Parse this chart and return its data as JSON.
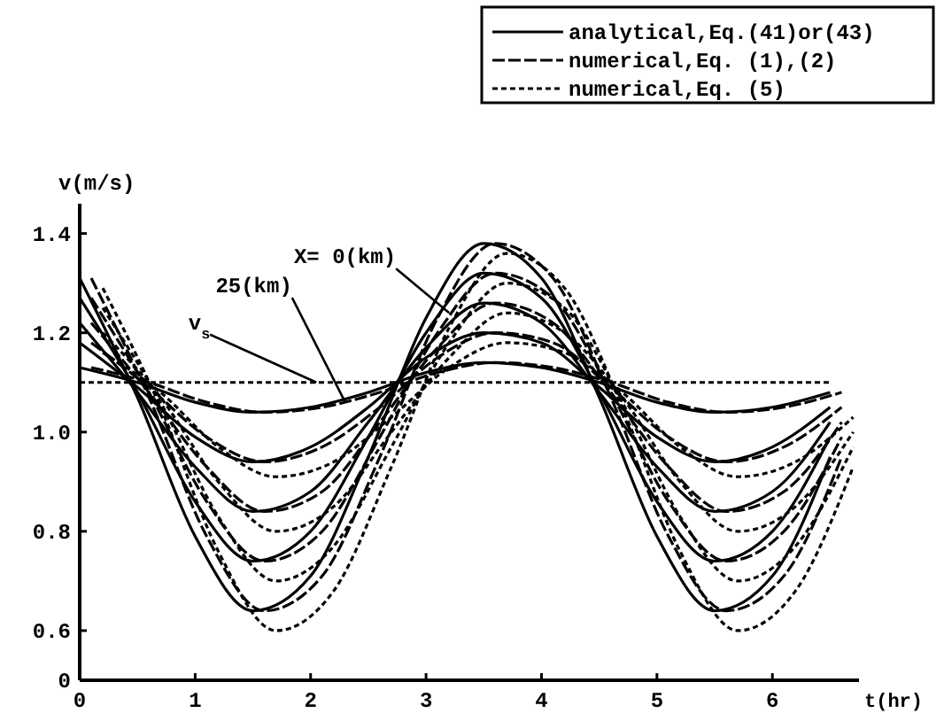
{
  "chart_data": {
    "type": "line",
    "xlabel": "t(hr)",
    "ylabel": "v(m/s)",
    "xlim": [
      0,
      6.75
    ],
    "xticks": [
      0,
      1,
      2,
      3,
      4,
      5,
      6
    ],
    "ylim": [
      0.5,
      1.46
    ],
    "yticks": [
      {
        "value": 0.5,
        "label": "0"
      },
      {
        "value": 0.6,
        "label": "0.6"
      },
      {
        "value": 0.8,
        "label": "0.8"
      },
      {
        "value": 1.0,
        "label": "1.0"
      },
      {
        "value": 1.2,
        "label": "1.2"
      },
      {
        "value": 1.4,
        "label": "1.4"
      }
    ],
    "legend": "top right",
    "grid": false,
    "series": [
      {
        "name": "analytical,Eq.(41)or(43)",
        "color": "#000000",
        "line_style": "solid",
        "x": [
          0,
          0.5,
          1,
          1.5,
          2,
          2.5,
          3,
          3.5,
          4,
          4.5,
          5,
          5.5,
          6,
          6.5
        ],
        "values": [
          1.31,
          1.07,
          0.79,
          0.64,
          0.71,
          0.95,
          1.23,
          1.38,
          1.31,
          1.07,
          0.79,
          0.64,
          0.71,
          0.95
        ]
      },
      {
        "name": "numerical,Eq. (1),(2)",
        "color": "#000000",
        "line_style": "dashed",
        "x": [
          0.1,
          0.6,
          1.1,
          1.6,
          2.1,
          2.6,
          3.1,
          3.6,
          4.1,
          4.6,
          5.1,
          5.6,
          6.1,
          6.6
        ],
        "values": [
          1.31,
          1.07,
          0.79,
          0.64,
          0.71,
          0.95,
          1.23,
          1.38,
          1.31,
          1.07,
          0.79,
          0.64,
          0.71,
          0.95
        ]
      },
      {
        "name": "numerical,Eq. (5)",
        "color": "#000000",
        "line_style": "dotted",
        "x": [
          0.2,
          0.7,
          1.2,
          1.7,
          2.2,
          2.7,
          3.2,
          3.7,
          4.2,
          4.7,
          5.2,
          5.7,
          6.2,
          6.7
        ],
        "values": [
          1.29,
          1.05,
          0.76,
          0.6,
          0.68,
          0.93,
          1.21,
          1.36,
          1.29,
          1.05,
          0.76,
          0.6,
          0.68,
          0.93
        ]
      },
      {
        "color": "#000000",
        "line_style": "solid",
        "x": [
          0,
          0.5,
          1,
          1.5,
          2,
          2.5,
          3,
          3.5,
          4,
          4.5,
          5,
          5.5,
          6,
          6.5
        ],
        "values": [
          1.27,
          1.08,
          0.86,
          0.74,
          0.8,
          0.99,
          1.2,
          1.32,
          1.27,
          1.08,
          0.86,
          0.74,
          0.8,
          0.99
        ]
      },
      {
        "color": "#000000",
        "line_style": "dashed",
        "x": [
          0.1,
          0.6,
          1.1,
          1.6,
          2.1,
          2.6,
          3.1,
          3.6,
          4.1,
          4.6,
          5.1,
          5.6,
          6.1,
          6.6
        ],
        "values": [
          1.27,
          1.08,
          0.86,
          0.74,
          0.8,
          0.99,
          1.2,
          1.32,
          1.27,
          1.08,
          0.86,
          0.74,
          0.8,
          0.99
        ]
      },
      {
        "color": "#000000",
        "line_style": "dotted",
        "x": [
          0.2,
          0.7,
          1.2,
          1.7,
          2.2,
          2.7,
          3.2,
          3.7,
          4.2,
          4.7,
          5.2,
          5.7,
          6.2,
          6.7
        ],
        "values": [
          1.25,
          1.06,
          0.83,
          0.7,
          0.77,
          0.97,
          1.18,
          1.3,
          1.25,
          1.06,
          0.83,
          0.7,
          0.77,
          0.97
        ]
      },
      {
        "color": "#000000",
        "line_style": "solid",
        "x": [
          0,
          0.5,
          1,
          1.5,
          2,
          2.5,
          3,
          3.5,
          4,
          4.5,
          5,
          5.5,
          6,
          6.5
        ],
        "values": [
          1.22,
          1.08,
          0.93,
          0.84,
          0.88,
          1.02,
          1.17,
          1.26,
          1.22,
          1.08,
          0.93,
          0.84,
          0.88,
          1.02
        ]
      },
      {
        "color": "#000000",
        "line_style": "dashed",
        "x": [
          0.1,
          0.6,
          1.1,
          1.6,
          2.1,
          2.6,
          3.1,
          3.6,
          4.1,
          4.6,
          5.1,
          5.6,
          6.1,
          6.6
        ],
        "values": [
          1.22,
          1.08,
          0.93,
          0.84,
          0.88,
          1.02,
          1.17,
          1.26,
          1.22,
          1.08,
          0.93,
          0.84,
          0.88,
          1.02
        ]
      },
      {
        "color": "#000000",
        "line_style": "dotted",
        "x": [
          0.2,
          0.7,
          1.2,
          1.7,
          2.2,
          2.7,
          3.2,
          3.7,
          4.2,
          4.7,
          5.2,
          5.7,
          6.2,
          6.7
        ],
        "values": [
          1.2,
          1.07,
          0.9,
          0.8,
          0.85,
          1.0,
          1.15,
          1.24,
          1.2,
          1.07,
          0.9,
          0.8,
          0.85,
          1.0
        ]
      },
      {
        "color": "#000000",
        "line_style": "solid",
        "x": [
          0,
          0.5,
          1,
          1.5,
          2,
          2.5,
          3,
          3.5,
          4,
          4.5,
          5,
          5.5,
          6,
          6.5
        ],
        "values": [
          1.18,
          1.09,
          0.99,
          0.94,
          0.97,
          1.05,
          1.15,
          1.2,
          1.18,
          1.09,
          0.99,
          0.94,
          0.97,
          1.05
        ]
      },
      {
        "color": "#000000",
        "line_style": "dashed",
        "x": [
          0.1,
          0.6,
          1.1,
          1.6,
          2.1,
          2.6,
          3.1,
          3.6,
          4.1,
          4.6,
          5.1,
          5.6,
          6.1,
          6.6
        ],
        "values": [
          1.18,
          1.09,
          0.99,
          0.94,
          0.97,
          1.05,
          1.15,
          1.2,
          1.18,
          1.09,
          0.99,
          0.94,
          0.97,
          1.05
        ]
      },
      {
        "color": "#000000",
        "line_style": "dotted",
        "x": [
          0.2,
          0.7,
          1.2,
          1.7,
          2.2,
          2.7,
          3.2,
          3.7,
          4.2,
          4.7,
          5.2,
          5.7,
          6.2,
          6.7
        ],
        "values": [
          1.16,
          1.08,
          0.97,
          0.91,
          0.94,
          1.03,
          1.13,
          1.18,
          1.16,
          1.08,
          0.97,
          0.91,
          0.94,
          1.03
        ]
      },
      {
        "color": "#000000",
        "line_style": "solid",
        "x": [
          0,
          0.5,
          1,
          1.5,
          2,
          2.5,
          3,
          3.5,
          4,
          4.5,
          5,
          5.5,
          6,
          6.5
        ],
        "values": [
          1.13,
          1.1,
          1.06,
          1.04,
          1.05,
          1.08,
          1.12,
          1.14,
          1.13,
          1.1,
          1.06,
          1.04,
          1.05,
          1.08
        ]
      },
      {
        "color": "#000000",
        "line_style": "dashed",
        "x": [
          0.1,
          0.6,
          1.1,
          1.6,
          2.1,
          2.6,
          3.1,
          3.6,
          4.1,
          4.6,
          5.1,
          5.6,
          6.1,
          6.6
        ],
        "values": [
          1.13,
          1.1,
          1.06,
          1.04,
          1.05,
          1.08,
          1.12,
          1.14,
          1.13,
          1.1,
          1.06,
          1.04,
          1.05,
          1.08
        ]
      },
      {
        "color": "#000000",
        "line_style": "dotted",
        "x": [
          0,
          0.5,
          1,
          1.5,
          2,
          2.5,
          3,
          3.5,
          4,
          4.5,
          5,
          5.5,
          6,
          6.5
        ],
        "values": [
          1.1,
          1.1,
          1.1,
          1.1,
          1.1,
          1.1,
          1.1,
          1.1,
          1.1,
          1.1,
          1.1,
          1.1,
          1.1,
          1.1
        ]
      }
    ],
    "annotations": [
      {
        "text": "X= 0(km)",
        "x": 3.2,
        "y": 1.24
      },
      {
        "text": "25(km)",
        "x": 2.3,
        "y": 1.06
      },
      {
        "text": "v$_{s}$",
        "x": 2.05,
        "y": 1.1
      }
    ]
  }
}
